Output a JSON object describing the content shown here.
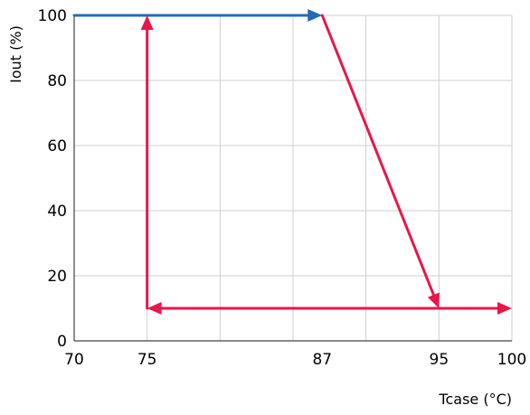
{
  "chart_data": {
    "type": "line",
    "xlabel": "Tcase (°C)",
    "ylabel": "Iout (%)",
    "xlim": [
      70,
      100
    ],
    "ylim": [
      0,
      100
    ],
    "x_ticks": [
      70,
      75,
      87,
      95,
      100
    ],
    "x_grid": [
      70,
      75,
      80,
      85,
      90,
      95,
      100
    ],
    "y_ticks": [
      0,
      20,
      40,
      60,
      80,
      100
    ],
    "grid": true,
    "series": [
      {
        "color": "#1f6fb5",
        "points": [
          [
            70,
            100
          ],
          [
            87,
            100
          ]
        ]
      },
      {
        "color": "#e8174a",
        "points": [
          [
            87,
            100
          ],
          [
            95,
            10
          ],
          [
            75,
            10
          ],
          [
            75,
            100
          ]
        ]
      },
      {
        "color": "#e8174a",
        "points": [
          [
            95,
            10
          ],
          [
            100,
            10
          ]
        ]
      }
    ]
  }
}
